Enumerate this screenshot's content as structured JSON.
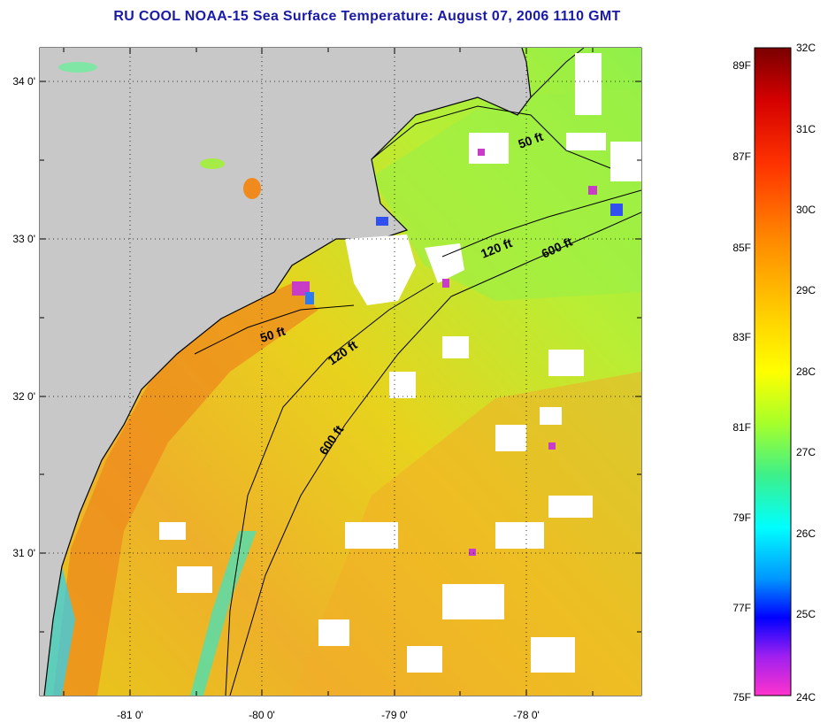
{
  "title": "RU COOL  NOAA-15  Sea Surface Temperature:  August 07, 2006 1110 GMT",
  "map": {
    "lat_ticks": [
      "34 0'",
      "33 0'",
      "32 0'",
      "31 0'"
    ],
    "lon_ticks": [
      "-81 0'",
      "-80 0'",
      "-79 0'",
      "-78 0'"
    ],
    "contour_labels": [
      "50 ft",
      "120 ft",
      "600 ft",
      "50 ft",
      "120 ft",
      "600 ft"
    ],
    "colors": {
      "land": "#c8c8c8",
      "cloud": "#ffffff",
      "coastline": "#000000"
    }
  },
  "colorbar": {
    "fahrenheit_labels": [
      "89F",
      "87F",
      "85F",
      "83F",
      "81F",
      "79F",
      "77F",
      "75F"
    ],
    "celsius_labels": [
      "32C",
      "31C",
      "30C",
      "29C",
      "28C",
      "27C",
      "26C",
      "25C",
      "24C"
    ]
  }
}
